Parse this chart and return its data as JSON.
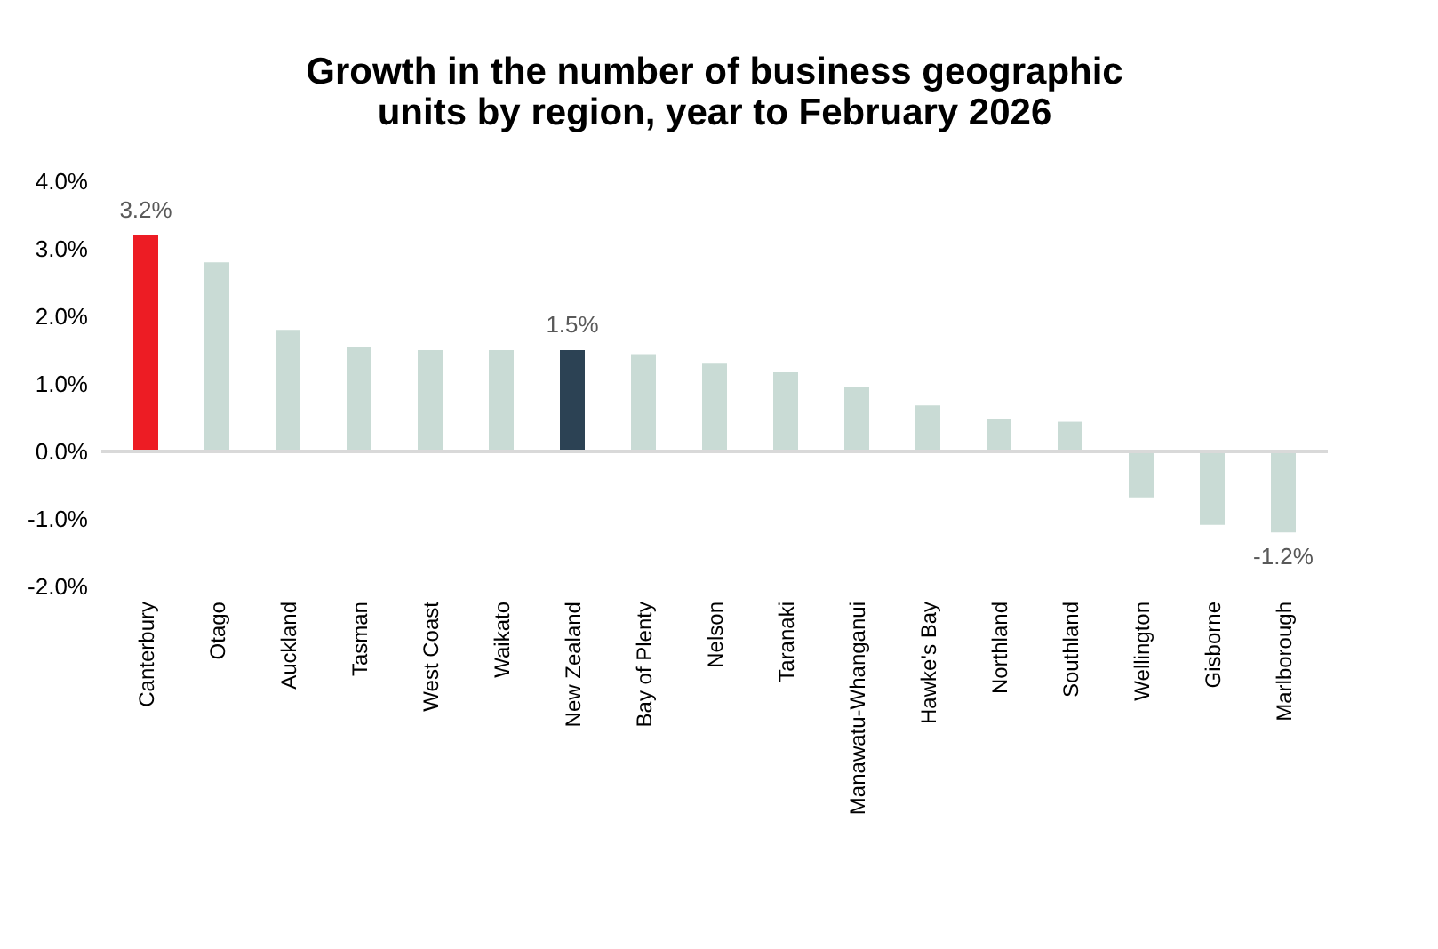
{
  "chart_data": {
    "type": "bar",
    "title": [
      "Growth in the number of business geographic",
      "units by region, year to February 2026"
    ],
    "categories": [
      "Canterbury",
      "Otago",
      "Auckland",
      "Tasman",
      "West Coast",
      "Waikato",
      "New Zealand",
      "Bay of Plenty",
      "Nelson",
      "Taranaki",
      "Manawatu-Whanganui",
      "Hawke's Bay",
      "Northland",
      "Southland",
      "Wellington",
      "Gisborne",
      "Marlborough"
    ],
    "values": [
      3.2,
      2.8,
      1.8,
      1.55,
      1.5,
      1.5,
      1.5,
      1.44,
      1.3,
      1.17,
      0.96,
      0.68,
      0.48,
      0.44,
      -0.68,
      -1.09,
      -1.2
    ],
    "colors": [
      "#ed1c24",
      "#c9dbd5",
      "#c9dbd5",
      "#c9dbd5",
      "#c9dbd5",
      "#c9dbd5",
      "#2c4254",
      "#c9dbd5",
      "#c9dbd5",
      "#c9dbd5",
      "#c9dbd5",
      "#c9dbd5",
      "#c9dbd5",
      "#c9dbd5",
      "#c9dbd5",
      "#c9dbd5",
      "#c9dbd5"
    ],
    "value_labels": [
      "3.2%",
      null,
      null,
      null,
      null,
      null,
      "1.5%",
      null,
      null,
      null,
      null,
      null,
      null,
      null,
      null,
      null,
      "-1.2%"
    ],
    "ylim": [
      -2.0,
      4.0
    ],
    "yticks": [
      {
        "value": -2.0,
        "label": "-2.0%"
      },
      {
        "value": -1.0,
        "label": "-1.0%"
      },
      {
        "value": 0.0,
        "label": "0.0%"
      },
      {
        "value": 1.0,
        "label": "1.0%"
      },
      {
        "value": 2.0,
        "label": "2.0%"
      },
      {
        "value": 3.0,
        "label": "3.0%"
      },
      {
        "value": 4.0,
        "label": "4.0%"
      }
    ],
    "ref_lines": [
      {
        "axis": "y",
        "value": 0,
        "color": "#d9d9d9"
      }
    ],
    "grid": false
  }
}
